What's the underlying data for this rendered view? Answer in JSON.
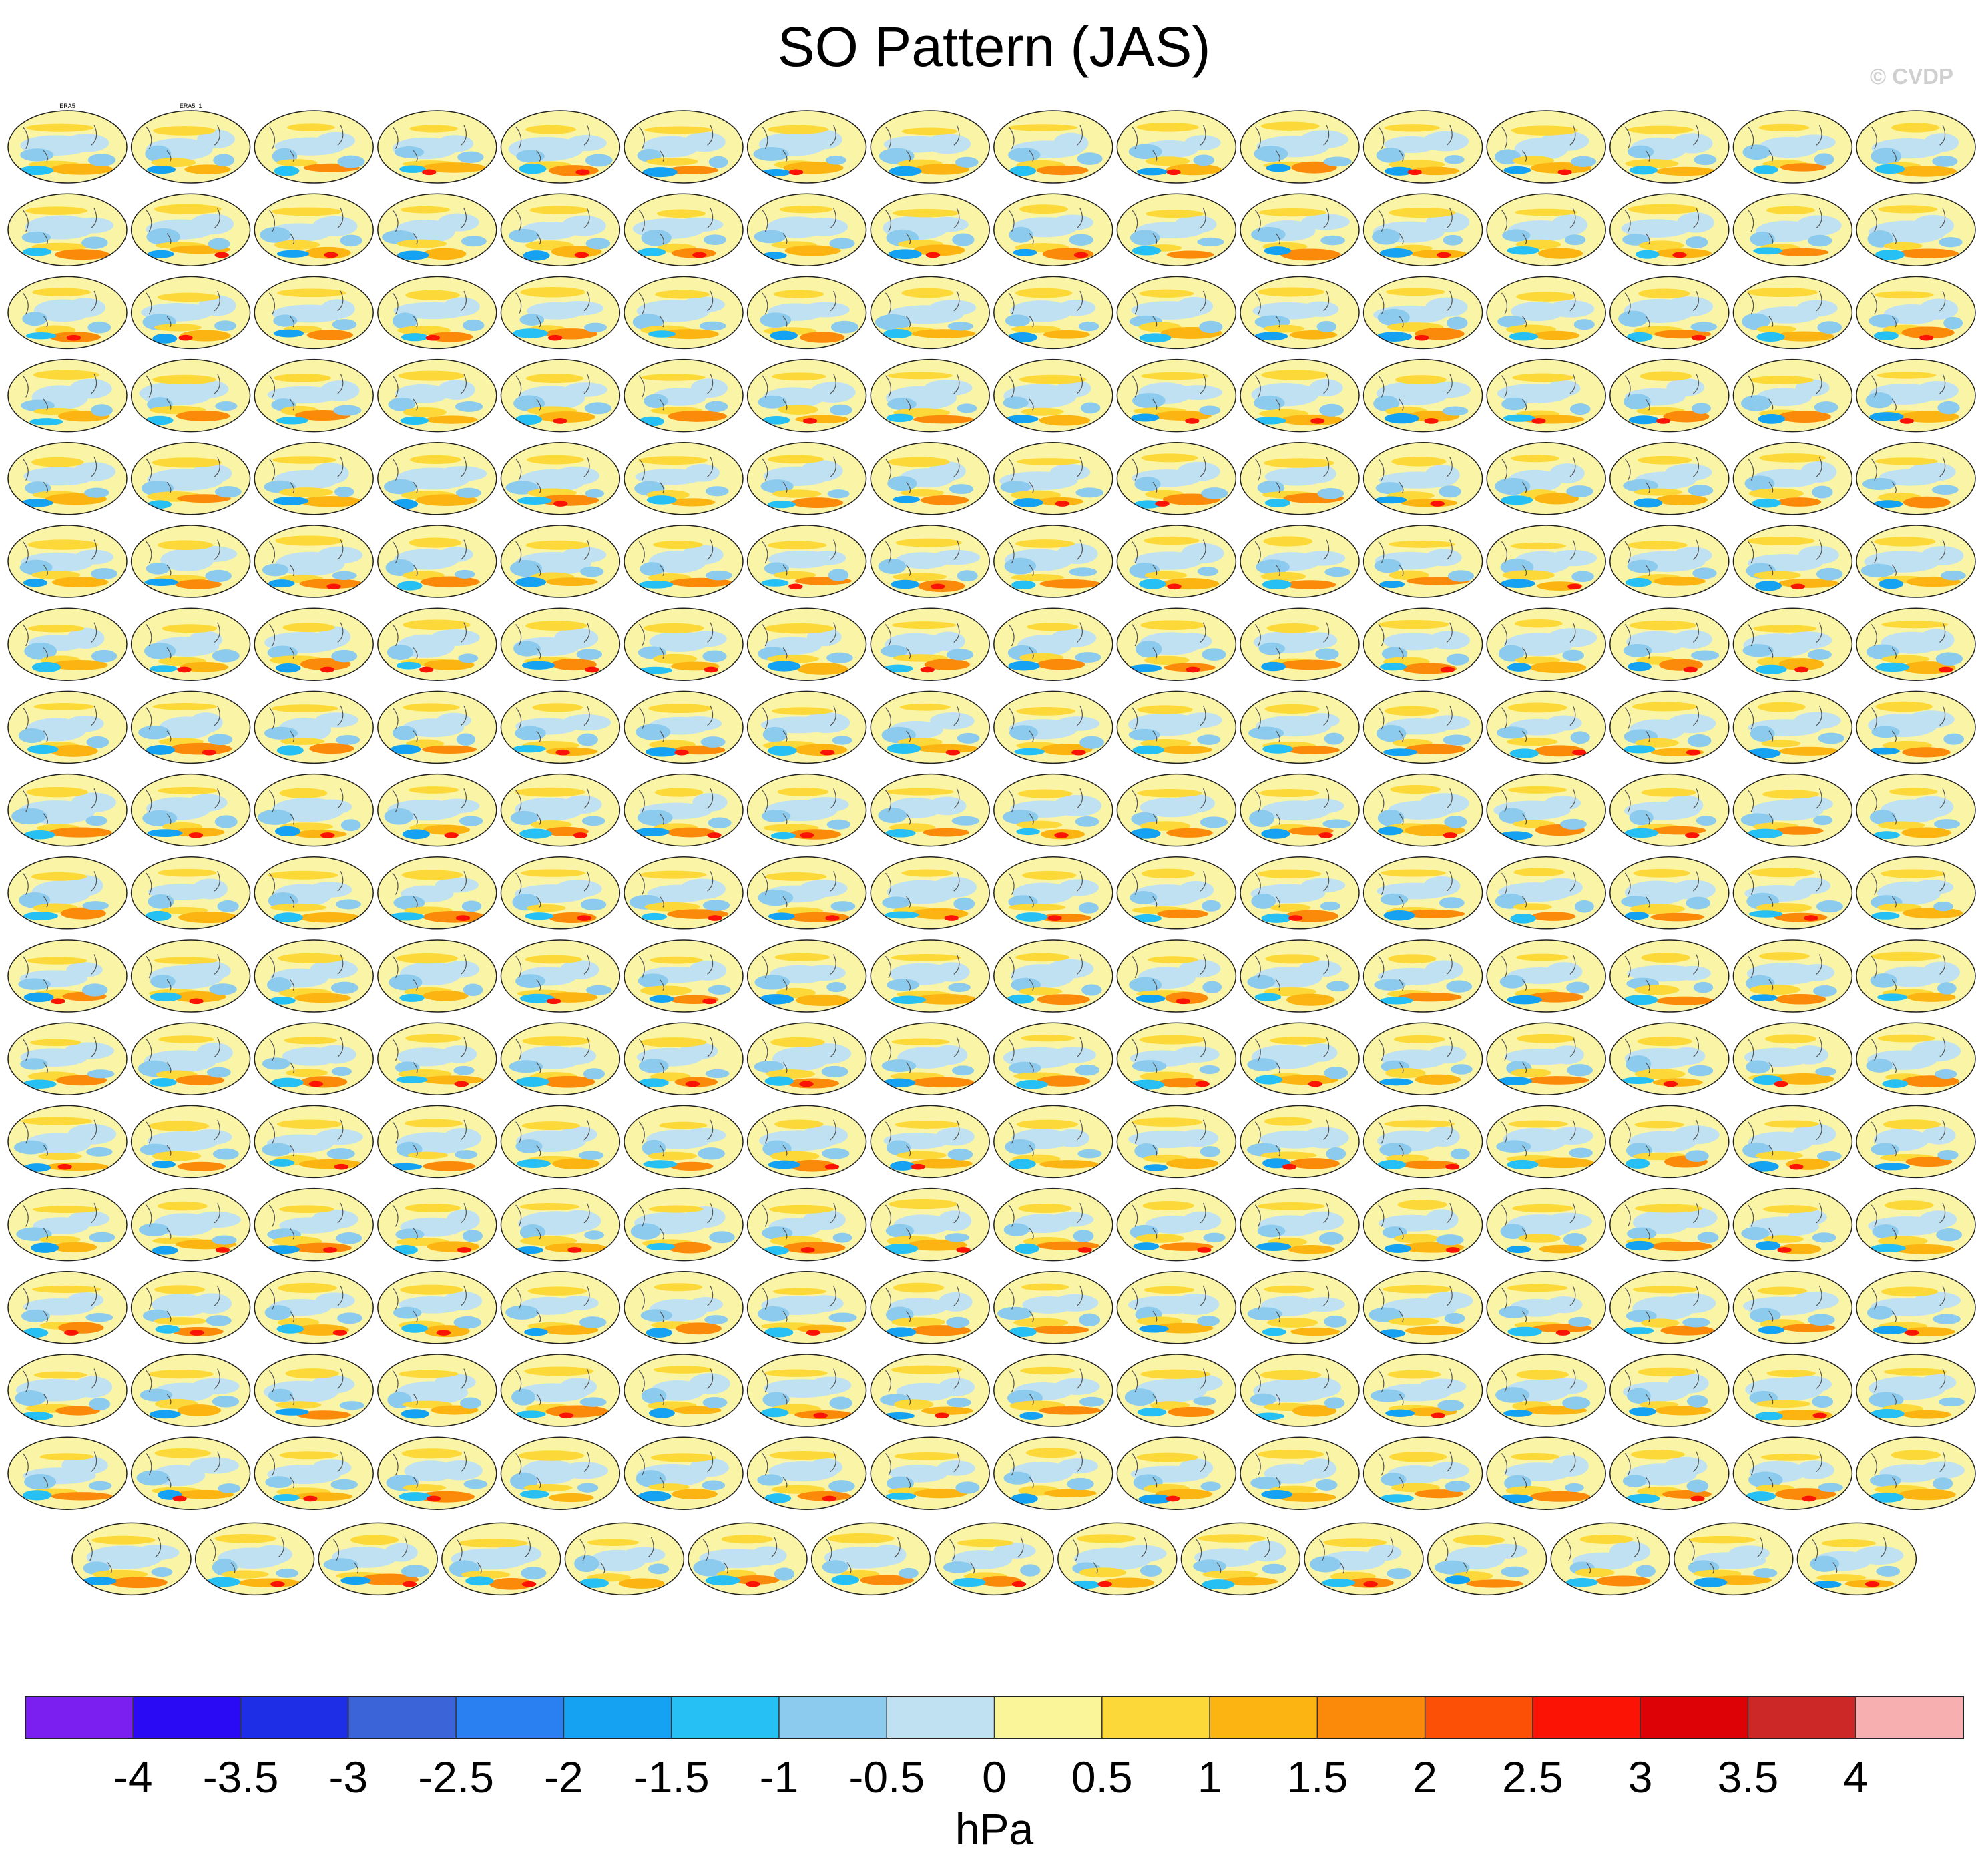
{
  "chart_data": {
    "type": "heatmap",
    "title": "SO Pattern (JAS)",
    "watermark": "© CVDP",
    "panel_rows": 17,
    "panels_per_row": 16,
    "last_row_panels": 15,
    "panel_titles": [
      "ERA5",
      "ERA5_1"
    ],
    "colorbar": {
      "unit": "hPa",
      "ticks": [
        "-4",
        "-3.5",
        "-3",
        "-2.5",
        "-2",
        "-1.5",
        "-1",
        "-0.5",
        "0",
        "0.5",
        "1",
        "1.5",
        "2",
        "2.5",
        "3",
        "3.5",
        "4"
      ],
      "colors": [
        "#7a1ff0",
        "#2a0af5",
        "#1e2ee6",
        "#3a64d8",
        "#2a80f0",
        "#15a2f2",
        "#26c0f4",
        "#8ccbee",
        "#bfe1f2",
        "#faf598",
        "#fcd838",
        "#fbb411",
        "#fb8a0a",
        "#fb5006",
        "#fb1305",
        "#dc0206",
        "#cc2828",
        "#f8afaf"
      ]
    }
  }
}
